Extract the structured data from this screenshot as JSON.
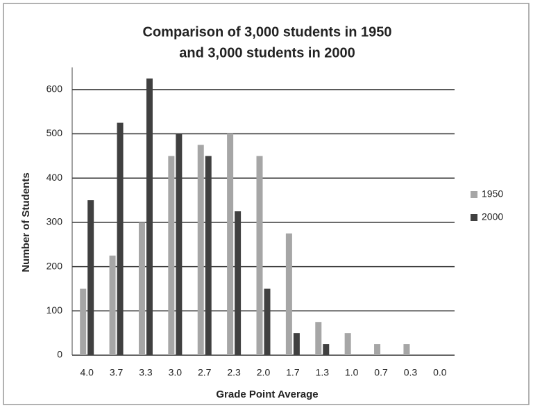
{
  "chart_data": {
    "type": "bar",
    "title": [
      "Comparison of 3,000 students in 1950",
      "and 3,000 students in 2000"
    ],
    "x_label": "Grade Point Average",
    "y_label": "Number of Students",
    "categories": [
      "4.0",
      "3.7",
      "3.3",
      "3.0",
      "2.7",
      "2.3",
      "2.0",
      "1.7",
      "1.3",
      "1.0",
      "0.7",
      "0.3",
      "0.0"
    ],
    "series": [
      {
        "name": "1950",
        "color": "#a6a6a6",
        "values": [
          150,
          225,
          300,
          450,
          475,
          500,
          450,
          275,
          75,
          50,
          25,
          25,
          0
        ]
      },
      {
        "name": "2000",
        "color": "#404040",
        "values": [
          350,
          525,
          625,
          500,
          450,
          325,
          150,
          50,
          25,
          0,
          0,
          0,
          0
        ]
      }
    ],
    "ylim": [
      0,
      650
    ],
    "yticks": [
      0,
      100,
      200,
      300,
      400,
      500,
      600
    ],
    "grid": true,
    "legend": "right"
  }
}
